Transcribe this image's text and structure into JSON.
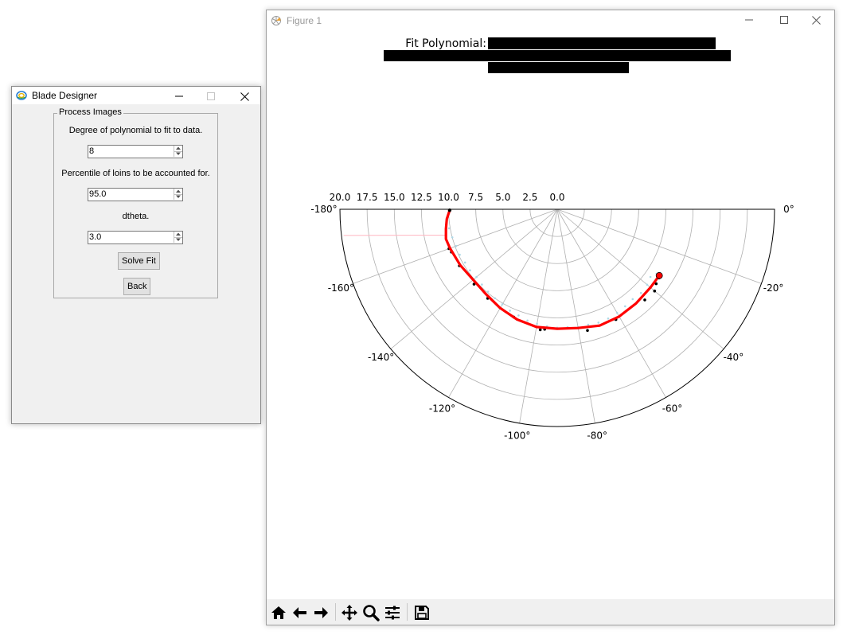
{
  "blade_designer": {
    "title": "Blade Designer",
    "group_title": "Process Images",
    "degree_label": "Degree of polynomial to fit to data.",
    "degree_value": "8",
    "percentile_label": "Percentile of loins to be accounted for.",
    "percentile_value": "95.0",
    "dtheta_label": "dtheta.",
    "dtheta_value": "3.0",
    "solve_button": "Solve Fit",
    "back_button": "Back"
  },
  "figure": {
    "title": "Figure 1",
    "toolbar": [
      {
        "icon": "home-icon"
      },
      {
        "icon": "back-arrow-icon"
      },
      {
        "icon": "forward-arrow-icon"
      },
      {
        "icon": "pan-icon"
      },
      {
        "icon": "zoom-icon"
      },
      {
        "icon": "subplots-icon"
      },
      {
        "icon": "save-icon"
      }
    ]
  },
  "chart_data": {
    "type": "scatter",
    "projection": "polar",
    "title": "Fit Polynomial:",
    "title_redacted": true,
    "theta_range_deg": [
      -180,
      0
    ],
    "r_range": [
      0,
      20
    ],
    "r_ticks": [
      "20.0",
      "17.5",
      "15.0",
      "12.5",
      "10.0",
      "7.5",
      "5.0",
      "2.5",
      "0.0"
    ],
    "theta_ticks": [
      "0°",
      "-20°",
      "-40°",
      "-60°",
      "-80°",
      "-100°",
      "-120°",
      "-140°",
      "-160°",
      "-180°"
    ],
    "grid": true,
    "colors": {
      "fit": "#ff0000",
      "data": "#000000",
      "scatter": "#add8e6",
      "overlay": "#ffb6c1"
    },
    "series": [
      {
        "kind": "fit",
        "points": [
          [
            -179.5,
            9.9
          ],
          [
            -175,
            10.2
          ],
          [
            -170,
            10.4
          ],
          [
            -165,
            10.6
          ],
          [
            -160,
            10.5
          ],
          [
            -150,
            10.3
          ],
          [
            -140,
            10.1
          ],
          [
            -130,
            10.2
          ],
          [
            -120,
            10.5
          ],
          [
            -110,
            10.8
          ],
          [
            -100,
            11.0
          ],
          [
            -90,
            11.0
          ],
          [
            -80,
            11.1
          ],
          [
            -70,
            11.4
          ],
          [
            -60,
            11.4
          ],
          [
            -50,
            11.3
          ],
          [
            -40,
            11.2
          ],
          [
            -33,
            11.2
          ]
        ]
      },
      {
        "kind": "data",
        "points": [
          [
            -160,
            10.6
          ],
          [
            -158,
            10.5
          ],
          [
            -150,
            10.4
          ],
          [
            -138,
            10.3
          ],
          [
            -128,
            10.4
          ],
          [
            -112,
            10.7
          ],
          [
            -98,
            11.2
          ],
          [
            -96,
            11.1
          ],
          [
            -76,
            11.5
          ],
          [
            -62,
            11.5
          ],
          [
            -46,
            11.6
          ],
          [
            -40,
            11.7
          ],
          [
            -37,
            11.4
          ],
          [
            -34,
            11.3
          ]
        ]
      },
      {
        "kind": "scatter",
        "points": [
          [
            -170,
            10.1
          ],
          [
            -165,
            10.0
          ],
          [
            -160,
            9.9
          ],
          [
            -155,
            9.9
          ],
          [
            -150,
            9.8
          ],
          [
            -145,
            9.8
          ],
          [
            -140,
            9.7
          ],
          [
            -135,
            9.8
          ],
          [
            -130,
            9.9
          ],
          [
            -125,
            10.0
          ],
          [
            -120,
            10.1
          ],
          [
            -115,
            10.3
          ],
          [
            -110,
            10.4
          ],
          [
            -105,
            10.6
          ],
          [
            -100,
            10.7
          ],
          [
            -95,
            10.8
          ],
          [
            -90,
            10.9
          ],
          [
            -85,
            10.9
          ],
          [
            -80,
            11.0
          ],
          [
            -75,
            11.0
          ],
          [
            -70,
            11.1
          ],
          [
            -65,
            11.1
          ],
          [
            -60,
            11.0
          ],
          [
            -55,
            10.9
          ],
          [
            -50,
            10.8
          ],
          [
            -45,
            10.9
          ],
          [
            -40,
            10.8
          ],
          [
            -36,
            10.6
          ],
          [
            -33,
            10.9
          ]
        ]
      },
      {
        "kind": "overlay",
        "points": [
          [
            -173,
            19.8
          ],
          [
            -167,
            10.6
          ]
        ]
      }
    ]
  }
}
